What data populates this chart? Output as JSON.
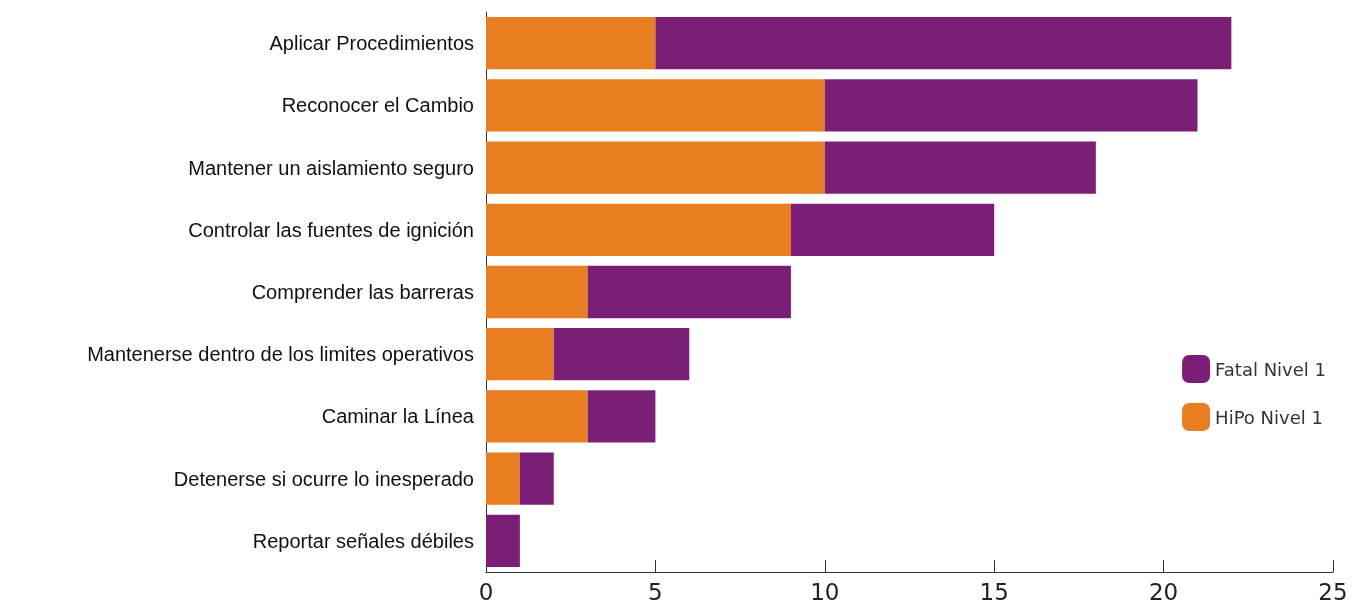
{
  "chart_data": {
    "type": "bar",
    "orientation": "horizontal",
    "stacked": true,
    "categories": [
      "Aplicar Procedimientos",
      "Reconocer el Cambio",
      "Mantener un aislamiento seguro",
      "Controlar las fuentes de ignición",
      "Comprender las barreras",
      "Mantenerse dentro de los limites operativos",
      "Caminar la Línea",
      "Detenerse si ocurre lo inesperado",
      "Reportar señales débiles"
    ],
    "series": [
      {
        "name": "HiPo Nivel 1",
        "color": "#e87d22",
        "values": [
          5,
          10,
          10,
          9,
          3,
          2,
          3,
          1,
          0
        ]
      },
      {
        "name": "Fatal Nivel 1",
        "color": "#7b1f76",
        "values": [
          17,
          11,
          8,
          6,
          6,
          4,
          2,
          1,
          1
        ]
      }
    ],
    "xlim": [
      0,
      25
    ],
    "xticks": [
      0,
      5,
      10,
      15,
      20,
      25
    ],
    "grid": false,
    "legend": "right"
  }
}
